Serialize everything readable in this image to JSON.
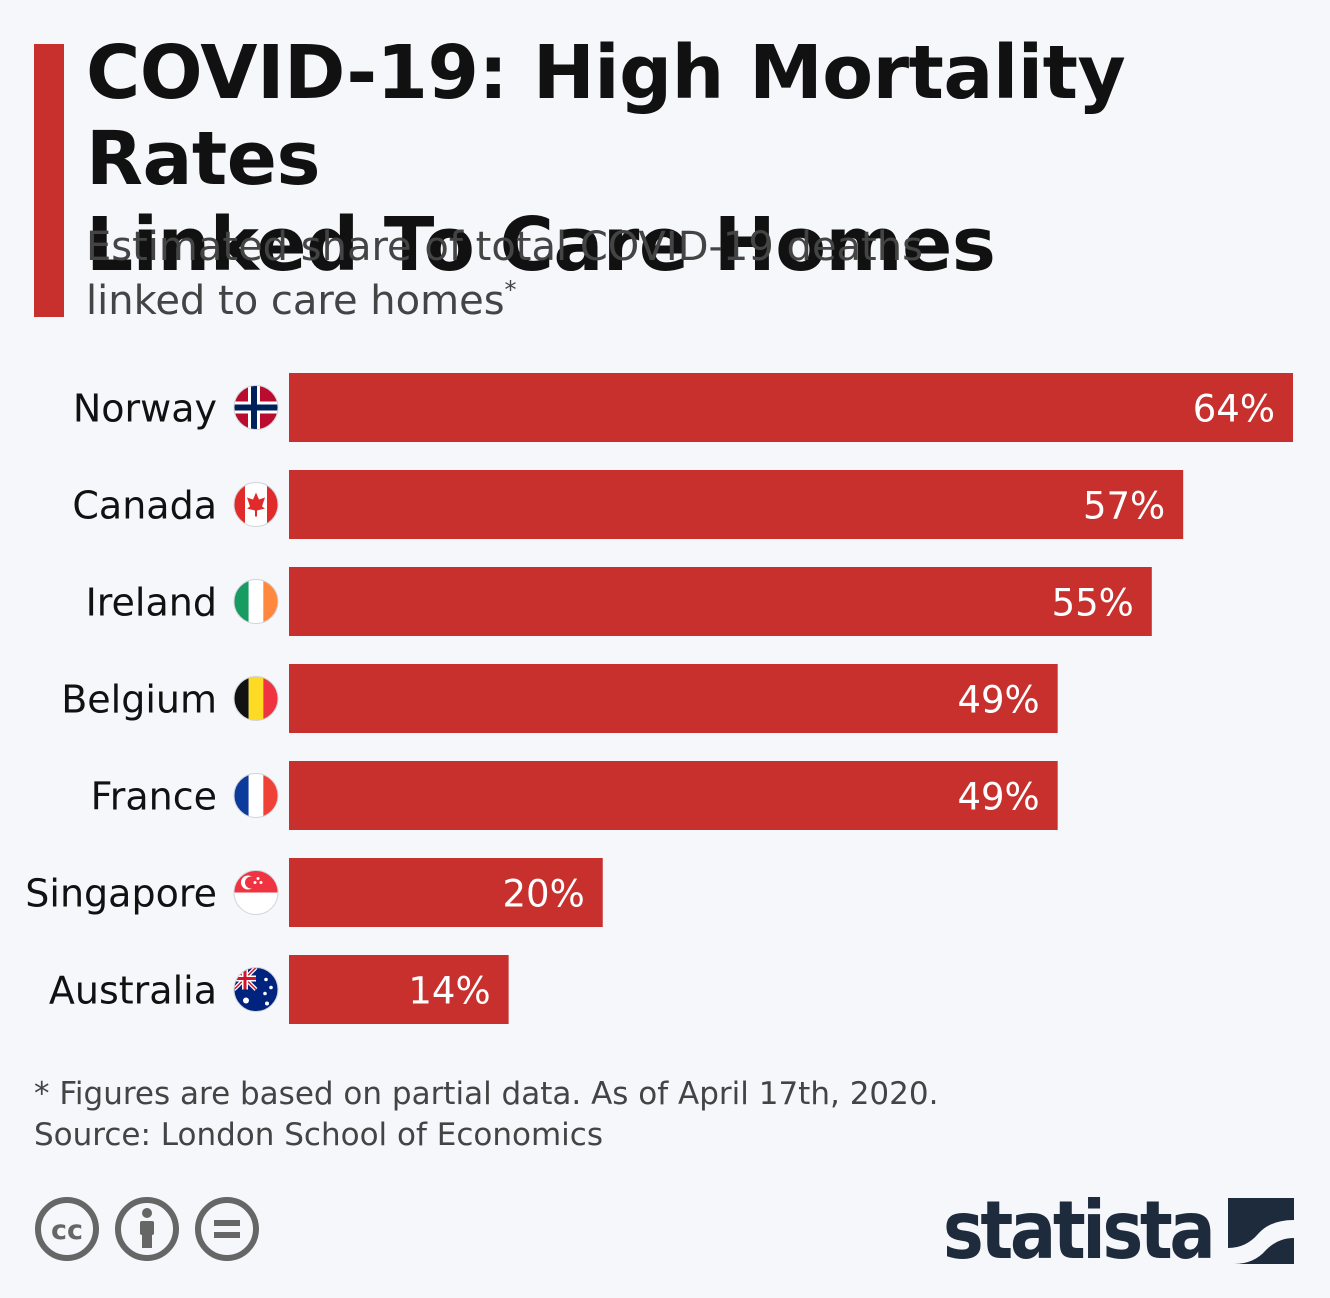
{
  "header": {
    "title_line1": "COVID-19: High Mortality Rates",
    "title_line2": "Linked To Care Homes",
    "subtitle_line1": "Estimated share of total COVID-19 deaths",
    "subtitle_line2": "linked to care homes",
    "subtitle_marker": "*"
  },
  "colors": {
    "bar": "#c8302e",
    "accent": "#c8302e",
    "text": "#111111",
    "logo": "#1e2b3c"
  },
  "chart_data": {
    "type": "bar",
    "orientation": "horizontal",
    "categories": [
      "Norway",
      "Canada",
      "Ireland",
      "Belgium",
      "France",
      "Singapore",
      "Australia"
    ],
    "values": [
      64,
      57,
      55,
      49,
      49,
      20,
      14
    ],
    "value_labels": [
      "64%",
      "57%",
      "55%",
      "49%",
      "49%",
      "20%",
      "14%"
    ],
    "unit": "%",
    "xlim": [
      0,
      64
    ],
    "grid": false,
    "legend": "none",
    "flag_icons": [
      "norway-flag-icon",
      "canada-flag-icon",
      "ireland-flag-icon",
      "belgium-flag-icon",
      "france-flag-icon",
      "singapore-flag-icon",
      "australia-flag-icon"
    ]
  },
  "footer": {
    "note": "* Figures are based on partial data. As of April 17th, 2020.",
    "source": "Source: London School of Economics",
    "license_icons": [
      "cc-icon",
      "attribution-icon",
      "no-derivatives-icon"
    ],
    "logo_text": "statista"
  }
}
